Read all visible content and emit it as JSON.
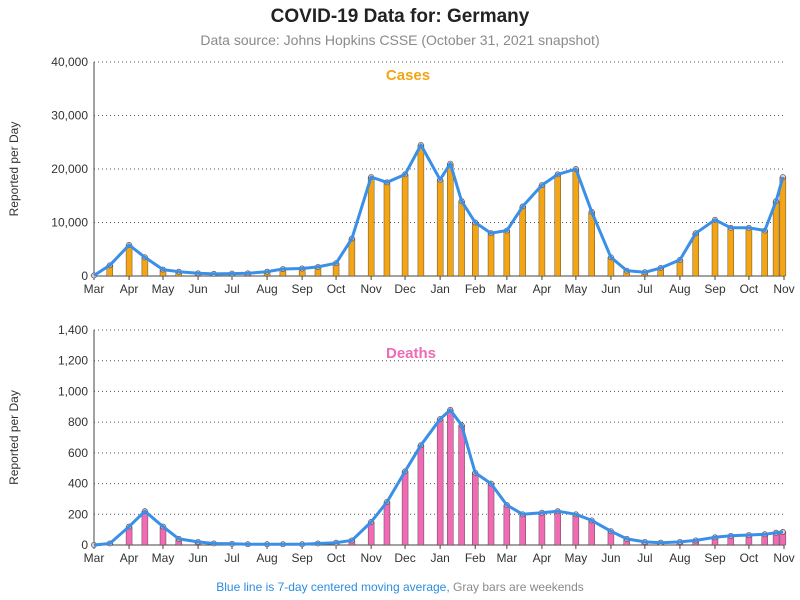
{
  "title": "COVID-19 Data for: Germany",
  "subtitle": "Data source: Johns Hopkins CSSE (October 31, 2021 snapshot)",
  "footer": {
    "blue_part": "Blue line is 7-day centered moving average,",
    "gray_part": "Gray bars are weekends"
  },
  "colors": {
    "cases": "#f4a516",
    "deaths": "#f06ab4",
    "moving_average": "#3a8fe8",
    "weekend": "#999999"
  },
  "chart_data": [
    {
      "type": "bar",
      "name": "cases",
      "label": "Cases",
      "ylabel": "Reported per Day",
      "ylim": [
        0,
        40000
      ],
      "yticks": [
        "0",
        "10,000",
        "20,000",
        "30,000",
        "40,000"
      ],
      "ytick_values": [
        0,
        10000,
        20000,
        30000,
        40000
      ],
      "xlabels": [
        "Mar",
        "Apr",
        "May",
        "Jun",
        "Jul",
        "Aug",
        "Sep",
        "Oct",
        "Nov",
        "Dec",
        "Jan",
        "Feb",
        "Mar",
        "Apr",
        "May",
        "Jun",
        "Jul",
        "Aug",
        "Sep",
        "Oct",
        "Nov"
      ],
      "x": [
        "2020-03-01",
        "2020-03-15",
        "2020-04-01",
        "2020-04-15",
        "2020-05-01",
        "2020-05-15",
        "2020-06-01",
        "2020-06-15",
        "2020-07-01",
        "2020-07-15",
        "2020-08-01",
        "2020-08-15",
        "2020-09-01",
        "2020-09-15",
        "2020-10-01",
        "2020-10-15",
        "2020-11-01",
        "2020-11-15",
        "2020-12-01",
        "2020-12-15",
        "2021-01-01",
        "2021-01-10",
        "2021-01-20",
        "2021-02-01",
        "2021-02-15",
        "2021-03-01",
        "2021-03-15",
        "2021-04-01",
        "2021-04-15",
        "2021-05-01",
        "2021-05-15",
        "2021-06-01",
        "2021-06-15",
        "2021-07-01",
        "2021-07-15",
        "2021-08-01",
        "2021-08-15",
        "2021-09-01",
        "2021-09-15",
        "2021-10-01",
        "2021-10-15",
        "2021-10-25",
        "2021-10-31"
      ],
      "values": [
        100,
        2000,
        5800,
        3500,
        1200,
        800,
        500,
        400,
        450,
        500,
        800,
        1300,
        1400,
        1700,
        2400,
        7000,
        18500,
        17500,
        19000,
        24500,
        18000,
        21000,
        14000,
        10000,
        8000,
        8500,
        13000,
        17000,
        19000,
        20000,
        12000,
        3500,
        1000,
        700,
        1500,
        3000,
        8000,
        10500,
        9000,
        9000,
        8500,
        14000,
        18500
      ],
      "moving_average": [
        100,
        2000,
        5800,
        3500,
        1200,
        800,
        500,
        400,
        450,
        500,
        800,
        1300,
        1400,
        1700,
        2400,
        7000,
        18500,
        17500,
        19000,
        24500,
        18000,
        21000,
        14000,
        10000,
        8000,
        8500,
        13000,
        17000,
        19000,
        20000,
        12000,
        3500,
        1000,
        700,
        1500,
        3000,
        8000,
        10500,
        9000,
        9000,
        8500,
        14000,
        18500
      ]
    },
    {
      "type": "bar",
      "name": "deaths",
      "label": "Deaths",
      "ylabel": "Reported per Day",
      "ylim": [
        0,
        1400
      ],
      "yticks": [
        "0",
        "200",
        "400",
        "600",
        "800",
        "1,000",
        "1,200",
        "1,400"
      ],
      "ytick_values": [
        0,
        200,
        400,
        600,
        800,
        1000,
        1200,
        1400
      ],
      "xlabels": [
        "Mar",
        "Apr",
        "May",
        "Jun",
        "Jul",
        "Aug",
        "Sep",
        "Oct",
        "Nov",
        "Dec",
        "Jan",
        "Feb",
        "Mar",
        "Apr",
        "May",
        "Jun",
        "Jul",
        "Aug",
        "Sep",
        "Oct",
        "Nov"
      ],
      "x": [
        "2020-03-01",
        "2020-03-15",
        "2020-04-01",
        "2020-04-15",
        "2020-05-01",
        "2020-05-15",
        "2020-06-01",
        "2020-06-15",
        "2020-07-01",
        "2020-07-15",
        "2020-08-01",
        "2020-08-15",
        "2020-09-01",
        "2020-09-15",
        "2020-10-01",
        "2020-10-15",
        "2020-11-01",
        "2020-11-15",
        "2020-12-01",
        "2020-12-15",
        "2021-01-01",
        "2021-01-10",
        "2021-01-20",
        "2021-02-01",
        "2021-02-15",
        "2021-03-01",
        "2021-03-15",
        "2021-04-01",
        "2021-04-15",
        "2021-05-01",
        "2021-05-15",
        "2021-06-01",
        "2021-06-15",
        "2021-07-01",
        "2021-07-15",
        "2021-08-01",
        "2021-08-15",
        "2021-09-01",
        "2021-09-15",
        "2021-10-01",
        "2021-10-15",
        "2021-10-25",
        "2021-10-31"
      ],
      "values": [
        0,
        10,
        120,
        220,
        120,
        40,
        20,
        10,
        8,
        5,
        5,
        5,
        5,
        10,
        15,
        30,
        150,
        280,
        480,
        650,
        820,
        880,
        780,
        470,
        400,
        260,
        200,
        210,
        220,
        200,
        160,
        90,
        40,
        20,
        15,
        20,
        30,
        50,
        60,
        65,
        70,
        80,
        85
      ],
      "moving_average": [
        0,
        10,
        120,
        220,
        120,
        40,
        20,
        10,
        8,
        5,
        5,
        5,
        5,
        10,
        15,
        30,
        150,
        280,
        480,
        650,
        820,
        880,
        780,
        470,
        400,
        260,
        200,
        210,
        220,
        200,
        160,
        90,
        40,
        20,
        15,
        20,
        30,
        50,
        60,
        65,
        70,
        80,
        85
      ]
    }
  ]
}
